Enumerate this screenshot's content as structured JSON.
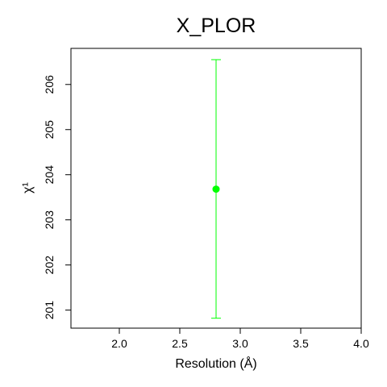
{
  "chart_data": {
    "type": "scatter",
    "title": "X_PLOR",
    "xlabel": "Resolution (Å)",
    "ylabel": "χ¹",
    "xlim": [
      1.6,
      4.0
    ],
    "ylim": [
      200.6,
      206.8
    ],
    "x_ticks": [
      2.0,
      2.5,
      3.0,
      3.5,
      4.0
    ],
    "x_tick_labels": [
      "2.0",
      "2.5",
      "3.0",
      "3.5",
      "4.0"
    ],
    "y_ticks": [
      201,
      202,
      203,
      204,
      205,
      206
    ],
    "y_tick_labels": [
      "201",
      "202",
      "203",
      "204",
      "205",
      "206"
    ],
    "grid": false,
    "series": [
      {
        "color": "#00ff00",
        "points": [
          {
            "x": 2.8,
            "y": 203.68,
            "y_low": 200.82,
            "y_high": 206.55
          }
        ]
      }
    ]
  }
}
